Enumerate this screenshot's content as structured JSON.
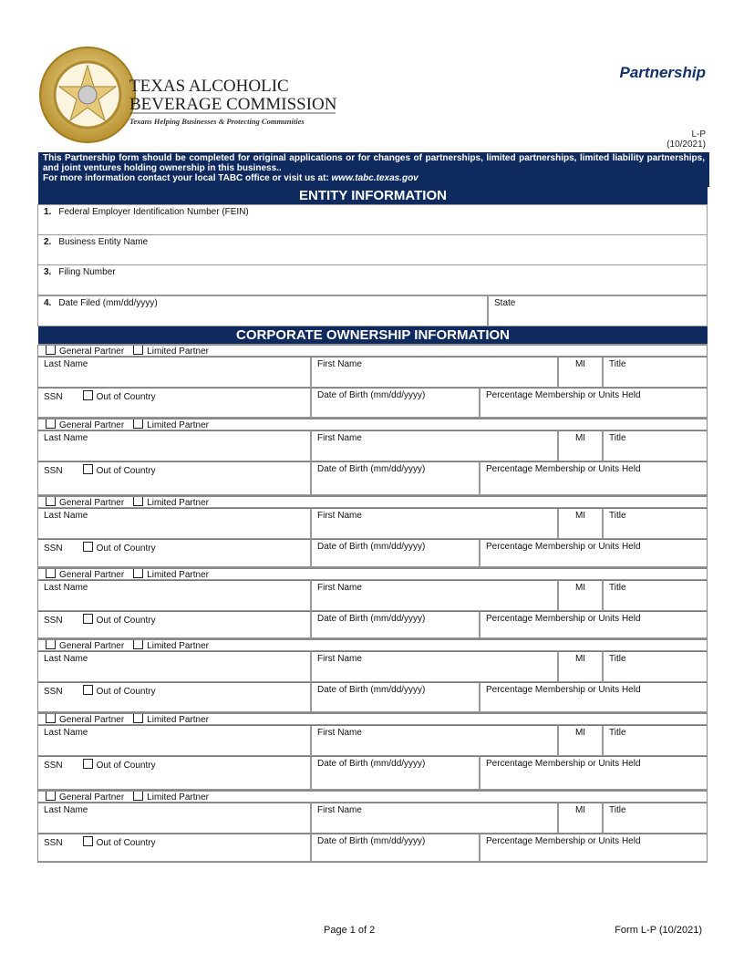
{
  "logo": {
    "seal_top": "TEXAS ALCOHOLIC",
    "seal_bottom": "BEVERAGE COMMISSION",
    "name_line1": "TEXAS ALCOHOLIC",
    "name_line2": "BEVERAGE COMMISSION",
    "tagline": "Texans Helping Businesses & Protecting Communities",
    "colors": {
      "gold": "#c9a84a",
      "navy": "#0f2a5f"
    }
  },
  "title": "Partnership",
  "form_code": "L-P",
  "form_date": "(10/2021)",
  "intro": {
    "line1": "This Partnership form should be completed for original applications or for changes of partnerships, limited partnerships, limited liability partnerships, and joint ventures holding ownership in this business..",
    "line2_prefix": "For more information contact your local TABC office or visit us at: ",
    "url": "www.tabc.texas.gov"
  },
  "entity": {
    "header": "ENTITY INFORMATION",
    "fields": [
      {
        "num": "1.",
        "label": "Federal Employer Identification Number (FEIN)"
      },
      {
        "num": "2.",
        "label": "Business Entity Name"
      },
      {
        "num": "3.",
        "label": "Filing Number"
      },
      {
        "num": "4.",
        "label": "Date Filed (mm/dd/yyyy)"
      }
    ],
    "state_label": "State"
  },
  "ownership": {
    "header": "CORPORATE OWNERSHIP INFORMATION",
    "labels": {
      "general_partner": "General Partner",
      "limited_partner": "Limited Partner",
      "last_name": "Last Name",
      "first_name": "First Name",
      "mi": "MI",
      "title": "Title",
      "ssn": "SSN",
      "out_of_country": "Out of Country",
      "dob": "Date of Birth (mm/dd/yyyy)",
      "percentage": "Percentage Membership or Units Held"
    },
    "partner_count": 7
  },
  "footer": {
    "page": "Page 1 of 2",
    "form": "Form L-P (10/2021)"
  }
}
